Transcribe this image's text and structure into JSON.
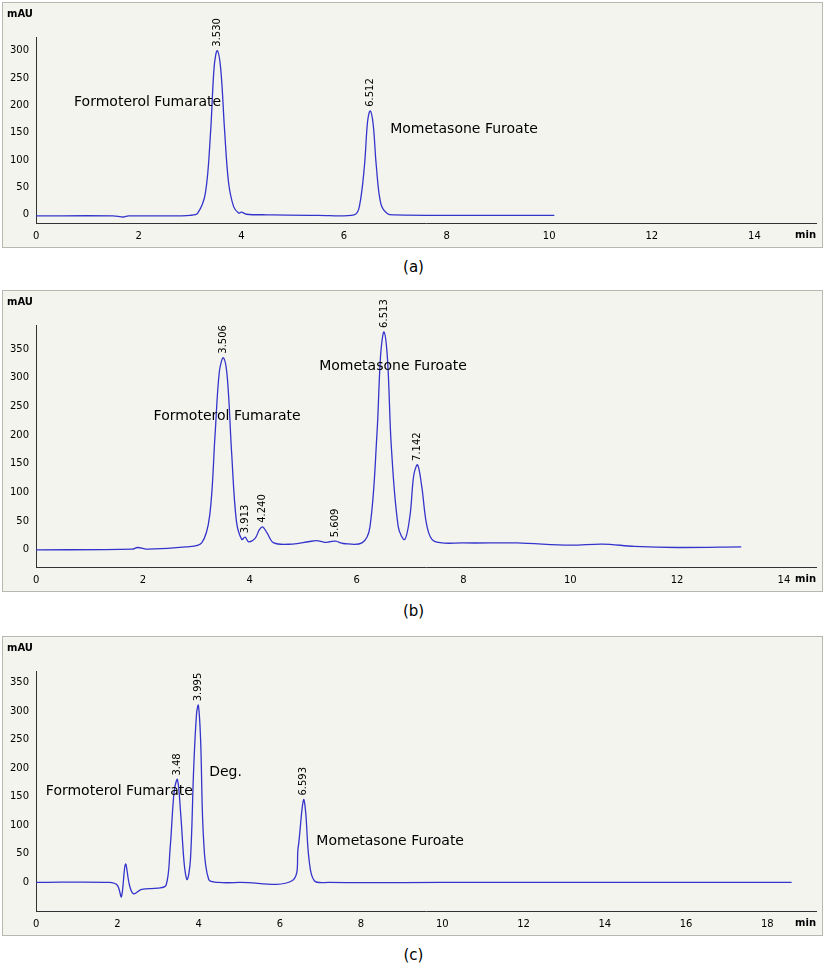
{
  "chart_data": [
    {
      "type": "line",
      "caption": "(a)",
      "x_label": "min",
      "y_label": "mAU",
      "color": "#3434cc",
      "grid": false,
      "x": [
        0,
        1.5,
        1.7,
        1.8,
        2.5,
        3.0,
        3.15,
        3.3,
        3.4,
        3.47,
        3.53,
        3.6,
        3.67,
        3.75,
        3.85,
        3.95,
        4.0,
        4.1,
        4.5,
        5.5,
        6.2,
        6.3,
        6.4,
        6.46,
        6.512,
        6.57,
        6.63,
        6.72,
        6.85,
        7.0,
        8.0,
        10.1
      ],
      "values": [
        -2,
        -2,
        -4,
        -2,
        -2,
        -1,
        3,
        40,
        150,
        270,
        300,
        265,
        160,
        60,
        15,
        3,
        5,
        1,
        0,
        -1,
        0,
        15,
        90,
        170,
        190,
        165,
        90,
        20,
        2,
        0,
        -1,
        -1
      ],
      "xlim": [
        0,
        15.2
      ],
      "xticks": [
        0,
        2,
        4,
        6,
        8,
        10,
        12,
        14
      ],
      "ylim": [
        -15,
        325
      ],
      "yticks": [
        0,
        50,
        100,
        150,
        200,
        250,
        300
      ],
      "annotations": [
        {
          "text": "Formoterol Fumarate",
          "x": 0.74,
          "y": 205
        },
        {
          "text": "Mometasone Furoate",
          "x": 6.9,
          "y": 157
        }
      ],
      "peak_labels": [
        {
          "x": 3.53,
          "y": 300,
          "label": "3.530"
        },
        {
          "x": 6.512,
          "y": 190,
          "label": "6.512"
        }
      ]
    },
    {
      "type": "line",
      "caption": "(b)",
      "x_label": "min",
      "y_label": "mAU",
      "color": "#3434cc",
      "grid": false,
      "x": [
        0,
        1.8,
        1.9,
        2.1,
        2.8,
        3.1,
        3.25,
        3.35,
        3.43,
        3.506,
        3.58,
        3.66,
        3.75,
        3.85,
        3.913,
        3.98,
        4.1,
        4.18,
        4.24,
        4.32,
        4.45,
        4.8,
        5.1,
        5.25,
        5.4,
        5.5,
        5.609,
        5.75,
        6.1,
        6.25,
        6.38,
        6.45,
        6.513,
        6.58,
        6.65,
        6.78,
        6.9,
        7.0,
        7.07,
        7.142,
        7.22,
        7.32,
        7.45,
        8.0,
        9.0,
        10.0,
        10.6,
        11.2,
        12.0,
        13.2
      ],
      "values": [
        0,
        1,
        4,
        1,
        5,
        12,
        60,
        200,
        310,
        335,
        300,
        170,
        50,
        18,
        22,
        14,
        20,
        35,
        40,
        30,
        12,
        10,
        14,
        16,
        13,
        14,
        15,
        11,
        12,
        40,
        200,
        340,
        380,
        330,
        180,
        40,
        18,
        60,
        130,
        148,
        110,
        40,
        15,
        12,
        12,
        8,
        10,
        6,
        4,
        5
      ],
      "xlim": [
        0,
        14.6
      ],
      "xticks": [
        0,
        2,
        4,
        6,
        8,
        10,
        12,
        14
      ],
      "ylim": [
        -30,
        392
      ],
      "yticks": [
        0,
        50,
        100,
        150,
        200,
        250,
        300,
        350
      ],
      "annotations": [
        {
          "text": "Formoterol Fumarate",
          "x": 2.2,
          "y": 233
        },
        {
          "text": "Mometasone Furoate",
          "x": 5.3,
          "y": 320
        }
      ],
      "peak_labels": [
        {
          "x": 3.506,
          "y": 335,
          "label": "3.506"
        },
        {
          "x": 3.913,
          "y": 22,
          "label": "3.913"
        },
        {
          "x": 4.24,
          "y": 40,
          "label": "4.240"
        },
        {
          "x": 5.609,
          "y": 15,
          "label": "5.609"
        },
        {
          "x": 6.513,
          "y": 380,
          "label": "6.513"
        },
        {
          "x": 7.142,
          "y": 148,
          "label": "7.142"
        }
      ]
    },
    {
      "type": "line",
      "caption": "(c)",
      "x_label": "min",
      "y_label": "mAU",
      "color": "#3434cc",
      "grid": false,
      "x": [
        0,
        1.8,
        2.0,
        2.1,
        2.2,
        2.3,
        2.4,
        2.6,
        3.0,
        3.2,
        3.3,
        3.4,
        3.48,
        3.56,
        3.65,
        3.72,
        3.8,
        3.88,
        3.95,
        3.995,
        4.05,
        4.12,
        4.25,
        4.5,
        5.0,
        6.3,
        6.45,
        6.55,
        6.593,
        6.64,
        6.72,
        6.85,
        7.2,
        10.0,
        14.0,
        18.6
      ],
      "values": [
        0,
        0,
        -5,
        -25,
        32,
        -5,
        -20,
        -12,
        -10,
        -5,
        60,
        160,
        180,
        120,
        30,
        5,
        40,
        200,
        295,
        310,
        250,
        80,
        5,
        0,
        0,
        3,
        60,
        130,
        145,
        120,
        40,
        3,
        0,
        0,
        0,
        0
      ],
      "xlim": [
        0,
        19.2
      ],
      "xticks": [
        0,
        2,
        4,
        6,
        8,
        10,
        12,
        14,
        16,
        18
      ],
      "ylim": [
        -50,
        370
      ],
      "yticks": [
        0,
        50,
        100,
        150,
        200,
        250,
        300,
        350
      ],
      "annotations": [
        {
          "text": "Formoterol Fumarate",
          "x": 0.24,
          "y": 160
        },
        {
          "text": "Deg.",
          "x": 4.26,
          "y": 192
        },
        {
          "text": "Mometasone Furoate",
          "x": 6.9,
          "y": 72
        }
      ],
      "peak_labels": [
        {
          "x": 3.48,
          "y": 180,
          "label": "3.48"
        },
        {
          "x": 3.995,
          "y": 310,
          "label": "3.995"
        },
        {
          "x": 6.593,
          "y": 145,
          "label": "6.593"
        }
      ]
    }
  ]
}
